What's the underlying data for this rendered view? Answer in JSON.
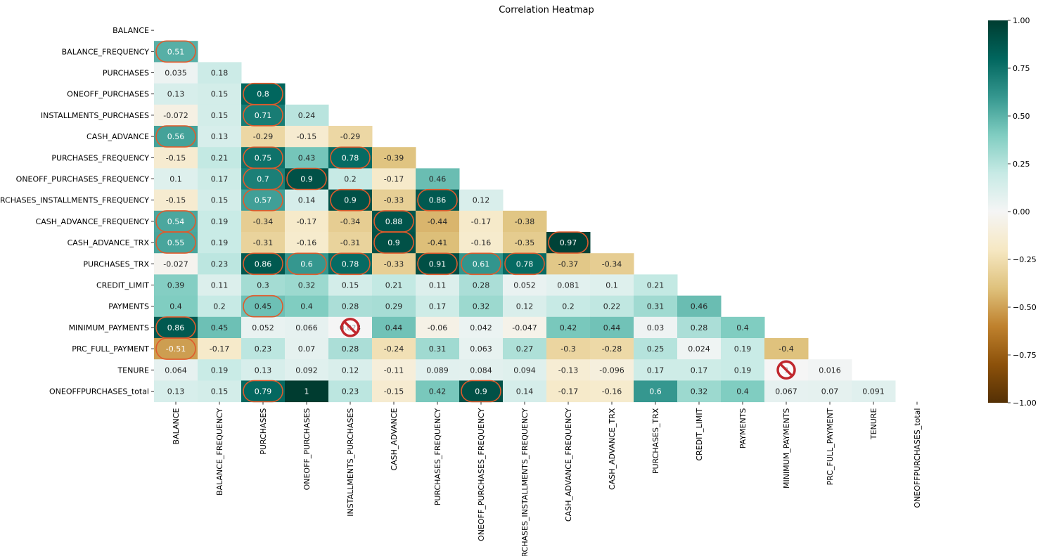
{
  "chart_data": {
    "type": "heatmap",
    "title": "Correlation Heatmap",
    "variables": [
      "BALANCE",
      "BALANCE_FREQUENCY",
      "PURCHASES",
      "ONEOFF_PURCHASES",
      "INSTALLMENTS_PURCHASES",
      "CASH_ADVANCE",
      "PURCHASES_FREQUENCY",
      "ONEOFF_PURCHASES_FREQUENCY",
      "PURCHASES_INSTALLMENTS_FREQUENCY",
      "CASH_ADVANCE_FREQUENCY",
      "CASH_ADVANCE_TRX",
      "PURCHASES_TRX",
      "CREDIT_LIMIT",
      "PAYMENTS",
      "MINIMUM_PAYMENTS",
      "PRC_FULL_PAYMENT",
      "TENURE",
      "ONEOFFPURCHASES_total"
    ],
    "mask": "upper-triangle-and-diagonal",
    "values": [
      [],
      [
        "0.51"
      ],
      [
        "0.035",
        "0.18"
      ],
      [
        "0.13",
        "0.15",
        "0.8"
      ],
      [
        "-0.072",
        "0.15",
        "0.71",
        "0.24"
      ],
      [
        "0.56",
        "0.13",
        "-0.29",
        "-0.15",
        "-0.29"
      ],
      [
        "-0.15",
        "0.21",
        "0.75",
        "0.43",
        "0.78",
        "-0.39"
      ],
      [
        "0.1",
        "0.17",
        "0.7",
        "0.9",
        "0.2",
        "-0.17",
        "0.46"
      ],
      [
        "-0.15",
        "0.15",
        "0.57",
        "0.14",
        "0.9",
        "-0.33",
        "0.86",
        "0.12"
      ],
      [
        "0.54",
        "0.19",
        "-0.34",
        "-0.17",
        "-0.34",
        "0.88",
        "-0.44",
        "-0.17",
        "-0.38"
      ],
      [
        "0.55",
        "0.19",
        "-0.31",
        "-0.16",
        "-0.31",
        "0.9",
        "-0.41",
        "-0.16",
        "-0.35",
        "0.97"
      ],
      [
        "-0.027",
        "0.23",
        "0.86",
        "0.6",
        "0.78",
        "-0.33",
        "0.91",
        "0.61",
        "0.78",
        "-0.37",
        "-0.34"
      ],
      [
        "0.39",
        "0.11",
        "0.3",
        "0.32",
        "0.15",
        "0.21",
        "0.11",
        "0.28",
        "0.052",
        "0.081",
        "0.1",
        "0.21"
      ],
      [
        "0.4",
        "0.2",
        "0.45",
        "0.4",
        "0.28",
        "0.29",
        "0.17",
        "0.32",
        "0.12",
        "0.2",
        "0.22",
        "0.31",
        "0.46"
      ],
      [
        "0.86",
        "0.45",
        "0.052",
        "0.066",
        "0.0?3",
        "0.44",
        "-0.06",
        "0.042",
        "-0.047",
        "0.42",
        "0.44",
        "0.03",
        "0.28",
        "0.4"
      ],
      [
        "-0.51",
        "-0.17",
        "0.23",
        "0.07",
        "0.28",
        "-0.24",
        "0.31",
        "0.063",
        "0.27",
        "-0.3",
        "-0.28",
        "0.25",
        "0.024",
        "0.19",
        "-0.4"
      ],
      [
        "0.064",
        "0.19",
        "0.13",
        "0.092",
        "0.12",
        "-0.11",
        "0.089",
        "0.084",
        "0.094",
        "-0.13",
        "-0.096",
        "0.17",
        "0.17",
        "0.19",
        "?",
        "0.016"
      ],
      [
        "0.13",
        "0.15",
        "0.79",
        "1",
        "0.23",
        "-0.15",
        "0.42",
        "0.9",
        "0.14",
        "-0.17",
        "-0.16",
        "0.6",
        "0.32",
        "0.4",
        "0.067",
        "0.07",
        "0.091"
      ]
    ],
    "colorbar": {
      "vmin": -1.0,
      "vmax": 1.0,
      "ticks": [
        "1.00",
        "0.75",
        "0.50",
        "0.25",
        "0.00",
        "−0.25",
        "−0.50",
        "−0.75",
        "−1.00"
      ],
      "colormap": "BrBG",
      "colors": [
        "#543005",
        "#8c510a",
        "#bf812d",
        "#dfc27d",
        "#f6e8c3",
        "#f5f5f5",
        "#c7eae5",
        "#80cdc1",
        "#35978f",
        "#01665e",
        "#003c30"
      ]
    },
    "annotations": {
      "circled_cells": [
        [
          1,
          0
        ],
        [
          3,
          2
        ],
        [
          4,
          2
        ],
        [
          5,
          0
        ],
        [
          6,
          2
        ],
        [
          6,
          4
        ],
        [
          7,
          2
        ],
        [
          7,
          3
        ],
        [
          8,
          2
        ],
        [
          8,
          4
        ],
        [
          8,
          6
        ],
        [
          9,
          0
        ],
        [
          9,
          5
        ],
        [
          10,
          0
        ],
        [
          10,
          5
        ],
        [
          10,
          9
        ],
        [
          11,
          2
        ],
        [
          11,
          3
        ],
        [
          11,
          4
        ],
        [
          11,
          6
        ],
        [
          11,
          7
        ],
        [
          11,
          8
        ],
        [
          13,
          2
        ],
        [
          14,
          0
        ],
        [
          15,
          0
        ],
        [
          17,
          2
        ],
        [
          17,
          7
        ]
      ],
      "circle_color": "#e05a2b",
      "no_sign_cells": [
        [
          14,
          4
        ],
        [
          16,
          14
        ]
      ],
      "no_sign_icon": "prohibited-icon"
    }
  }
}
